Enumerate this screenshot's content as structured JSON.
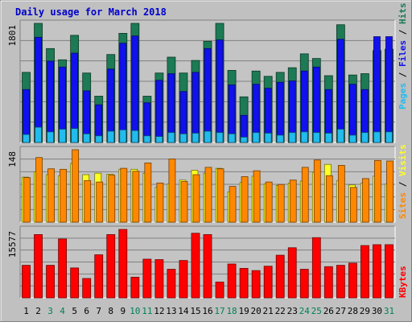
{
  "chart_data": {
    "type": "bar",
    "title": "Daily usage for March 2018",
    "categories": [
      "1",
      "2",
      "3",
      "4",
      "5",
      "6",
      "7",
      "8",
      "9",
      "10",
      "11",
      "12",
      "13",
      "14",
      "15",
      "16",
      "17",
      "18",
      "19",
      "20",
      "21",
      "22",
      "23",
      "24",
      "25",
      "26",
      "27",
      "28",
      "29",
      "30",
      "31"
    ],
    "weekend_days": [
      "3",
      "4",
      "10",
      "11",
      "17",
      "18",
      "24",
      "25",
      "31"
    ],
    "top_panel": {
      "max_label": "1801",
      "ylim": [
        0,
        1801
      ],
      "series": [
        {
          "name": "Hits",
          "color": "#1c7a55",
          "values": [
            1060,
            1801,
            1420,
            1250,
            1620,
            1050,
            700,
            1330,
            1650,
            1801,
            700,
            1050,
            1290,
            1050,
            1240,
            1530,
            1801,
            1090,
            690,
            1080,
            1000,
            1060,
            1130,
            1340,
            1270,
            1010,
            1780,
            1020,
            1040,
            1390,
            1410
          ]
        },
        {
          "name": "Files",
          "color": "#1111ee",
          "values": [
            800,
            1590,
            1230,
            1140,
            1350,
            780,
            570,
            1110,
            1500,
            1610,
            600,
            940,
            1040,
            770,
            1060,
            1420,
            1550,
            870,
            410,
            880,
            820,
            910,
            930,
            1080,
            1140,
            800,
            1560,
            880,
            800,
            1600,
            1600
          ]
        },
        {
          "name": "Pages",
          "color": "#22bbee",
          "values": [
            120,
            230,
            160,
            200,
            210,
            130,
            100,
            170,
            190,
            180,
            100,
            90,
            150,
            130,
            140,
            170,
            150,
            130,
            80,
            150,
            140,
            110,
            150,
            160,
            150,
            140,
            200,
            110,
            150,
            160,
            160
          ]
        }
      ]
    },
    "mid_panel": {
      "max_label": "148",
      "ylim": [
        0,
        148
      ],
      "series": [
        {
          "name": "Visits",
          "color": "#ffff22",
          "values": [
            92,
            103,
            97,
            95,
            120,
            97,
            100,
            98,
            108,
            108,
            100,
            71,
            78,
            86,
            106,
            100,
            110,
            62,
            81,
            94,
            78,
            75,
            80,
            84,
            102,
            118,
            85,
            76,
            80,
            94,
            78
          ]
        },
        {
          "name": "Sites",
          "color": "#ff8800",
          "values": [
            91,
            132,
            109,
            108,
            148,
            85,
            82,
            96,
            110,
            104,
            121,
            80,
            129,
            83,
            97,
            112,
            109,
            73,
            93,
            105,
            82,
            77,
            86,
            112,
            127,
            95,
            116,
            71,
            89,
            126,
            125
          ]
        }
      ]
    },
    "bottom_panel": {
      "max_label": "15577",
      "ylim": [
        0,
        15577
      ],
      "series": [
        {
          "name": "KBytes",
          "color": "#ff0000",
          "values": [
            7400,
            14400,
            7400,
            13400,
            6800,
            4400,
            9800,
            14400,
            15577,
            4700,
            8800,
            8700,
            6500,
            8500,
            14700,
            14400,
            3600,
            7700,
            6700,
            6200,
            7200,
            9700,
            11400,
            6500,
            13700,
            7100,
            7400,
            7900,
            11900,
            12100,
            12100
          ]
        }
      ]
    },
    "legend": {
      "top": [
        "Pages",
        "Files",
        "Hits"
      ],
      "mid": [
        "Sites",
        "Visits"
      ],
      "bottom": [
        "KBytes"
      ]
    },
    "grid": true
  },
  "colors": {
    "frame": "#c0c0c0",
    "plot_bg": "#c4c4c4",
    "gridline": "#808080",
    "title": "#0000cc",
    "weekday_label": "#000000",
    "weekend_label": "#00805a",
    "slash": "#000000"
  }
}
